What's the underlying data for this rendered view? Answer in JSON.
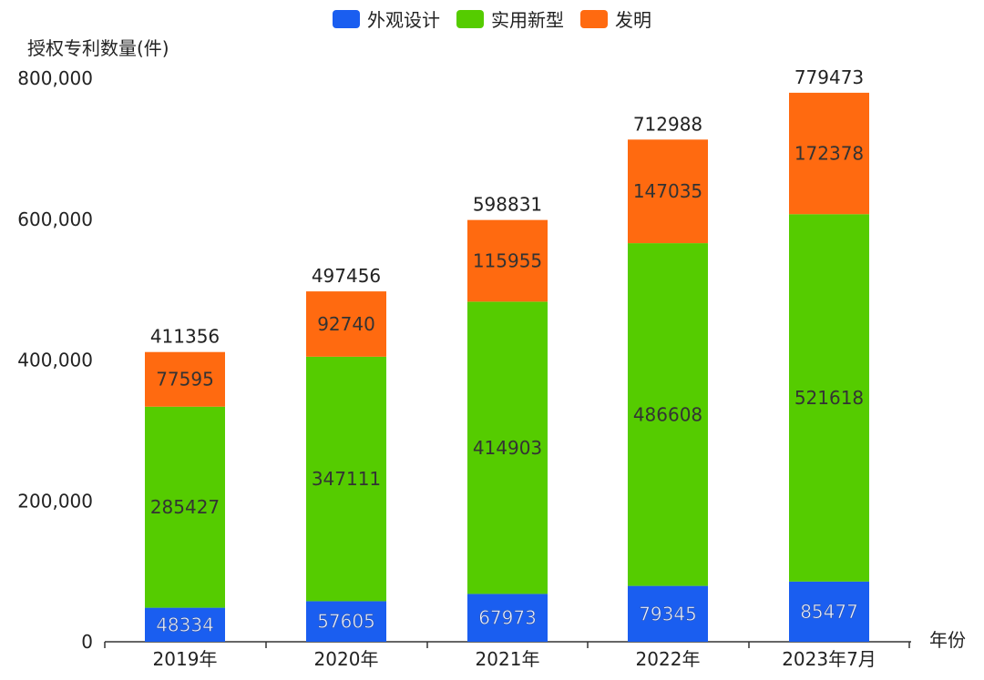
{
  "chart_data": {
    "type": "bar",
    "stacked": true,
    "title": "",
    "ylabel": "授权专利数量(件)",
    "xlabel": "年份",
    "ylim": [
      0,
      800000
    ],
    "yticks": [
      "0",
      "200,000",
      "400,000",
      "600,000",
      "800,000"
    ],
    "ytick_values": [
      0,
      200000,
      400000,
      600000,
      800000
    ],
    "categories": [
      "2019年",
      "2020年",
      "2021年",
      "2022年",
      "2023年7月"
    ],
    "series": [
      {
        "name": "外观设计",
        "color": "#1a5ef0",
        "values": [
          48334,
          57605,
          67973,
          79345,
          85477
        ]
      },
      {
        "name": "实用新型",
        "color": "#55cc00",
        "values": [
          285427,
          347111,
          414903,
          486608,
          521618
        ]
      },
      {
        "name": "发明",
        "color": "#ff6a10",
        "values": [
          77595,
          92740,
          115955,
          147035,
          172378
        ]
      }
    ],
    "totals": [
      411356,
      497456,
      598831,
      712988,
      779473
    ],
    "legend_position": "top-center",
    "grid": false
  }
}
